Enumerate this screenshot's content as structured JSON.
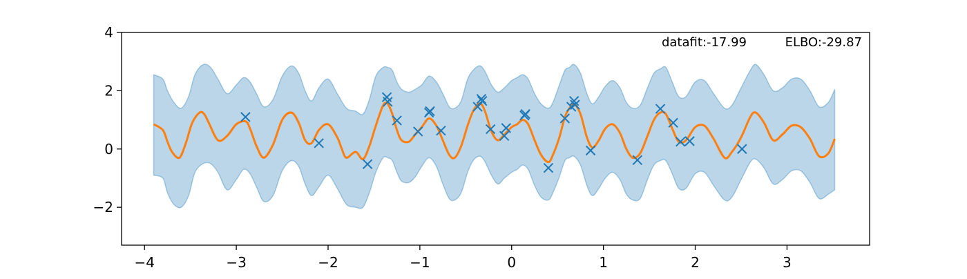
{
  "chart_data": {
    "type": "line",
    "title": "",
    "xlabel": "",
    "ylabel": "",
    "xlim": [
      -4.25,
      3.9
    ],
    "ylim": [
      -3.3,
      4.0
    ],
    "xticks": [
      -4,
      -3,
      -2,
      -1,
      0,
      1,
      2,
      3
    ],
    "yticks": [
      -2,
      0,
      2,
      4
    ],
    "grid": false,
    "colors": {
      "mean": "#ff7f0e",
      "band_fill": "#1f77b4",
      "band_edge": "#1f77b4",
      "points": "#1f77b4"
    },
    "annotations": [
      {
        "label": "datafit:-17.99"
      },
      {
        "label": "ELBO:-29.87"
      }
    ],
    "points": {
      "x": [
        -2.9,
        -2.1,
        -1.57,
        -1.36,
        -1.35,
        -1.25,
        -1.02,
        -0.9,
        -0.89,
        -0.77,
        -0.37,
        -0.33,
        -0.32,
        -0.23,
        -0.08,
        -0.06,
        0.14,
        0.15,
        0.4,
        0.58,
        0.65,
        0.68,
        0.69,
        0.86,
        1.37,
        1.62,
        1.76,
        1.84,
        1.94,
        2.51
      ],
      "y": [
        1.1,
        0.2,
        -0.52,
        1.78,
        1.62,
        0.98,
        0.6,
        1.25,
        1.3,
        0.63,
        1.45,
        1.72,
        1.65,
        0.68,
        0.45,
        0.72,
        1.15,
        1.2,
        -0.65,
        1.05,
        1.45,
        1.65,
        1.52,
        -0.05,
        -0.38,
        1.38,
        0.9,
        0.25,
        0.27,
        0.0
      ]
    },
    "series": [
      {
        "kind": "mean",
        "x": [
          -3.9,
          -3.8,
          -3.75,
          -3.7,
          -3.62,
          -3.55,
          -3.48,
          -3.4,
          -3.35,
          -3.3,
          -3.2,
          -3.1,
          -3.0,
          -2.9,
          -2.85,
          -2.78,
          -2.7,
          -2.6,
          -2.5,
          -2.4,
          -2.32,
          -2.25,
          -2.18,
          -2.1,
          -2.0,
          -1.9,
          -1.85,
          -1.8,
          -1.7,
          -1.62,
          -1.55,
          -1.48,
          -1.4,
          -1.35,
          -1.3,
          -1.25,
          -1.2,
          -1.12,
          -1.05,
          -0.98,
          -0.9,
          -0.82,
          -0.75,
          -0.68,
          -0.62,
          -0.55,
          -0.48,
          -0.42,
          -0.36,
          -0.32,
          -0.28,
          -0.22,
          -0.15,
          -0.08,
          0.0,
          0.06,
          0.12,
          0.18,
          0.25,
          0.32,
          0.4,
          0.45,
          0.52,
          0.58,
          0.63,
          0.68,
          0.75,
          0.82,
          0.88,
          0.95,
          1.02,
          1.1,
          1.18,
          1.25,
          1.32,
          1.4,
          1.48,
          1.55,
          1.62,
          1.68,
          1.75,
          1.82,
          1.9,
          2.0,
          2.1,
          2.2,
          2.32,
          2.4,
          2.5,
          2.6,
          2.66,
          2.75,
          2.85,
          2.95,
          3.05,
          3.15,
          3.25,
          3.35,
          3.45,
          3.52
        ],
        "y": [
          0.85,
          0.65,
          0.25,
          -0.1,
          -0.3,
          0.2,
          0.9,
          1.25,
          1.2,
          0.9,
          0.3,
          0.45,
          0.85,
          0.95,
          0.7,
          0.1,
          -0.3,
          0.15,
          1.0,
          1.25,
          0.9,
          0.3,
          0.2,
          0.65,
          0.85,
          0.4,
          0.0,
          -0.3,
          -0.1,
          -0.35,
          0.1,
          0.8,
          1.5,
          1.55,
          1.2,
          0.65,
          0.3,
          0.25,
          0.5,
          0.75,
          1.05,
          0.8,
          0.3,
          -0.2,
          -0.3,
          0.1,
          0.8,
          1.3,
          1.55,
          1.5,
          1.2,
          0.6,
          0.3,
          0.5,
          0.75,
          0.85,
          1.0,
          0.85,
          0.3,
          -0.2,
          -0.45,
          -0.2,
          0.4,
          1.1,
          1.4,
          1.55,
          1.2,
          0.4,
          0.05,
          0.3,
          0.7,
          0.85,
          0.55,
          0.0,
          -0.3,
          -0.15,
          0.45,
          1.0,
          1.25,
          1.2,
          0.7,
          0.25,
          0.3,
          0.75,
          0.8,
          0.35,
          -0.3,
          -0.1,
          0.4,
          1.1,
          1.25,
          0.9,
          0.3,
          0.5,
          0.8,
          0.75,
          0.35,
          -0.25,
          -0.15,
          0.35
        ]
      },
      {
        "kind": "band_upper",
        "x": [
          -3.9,
          -3.8,
          -3.75,
          -3.68,
          -3.6,
          -3.52,
          -3.45,
          -3.36,
          -3.28,
          -3.2,
          -3.1,
          -3.0,
          -2.92,
          -2.85,
          -2.78,
          -2.7,
          -2.6,
          -2.5,
          -2.4,
          -2.32,
          -2.25,
          -2.18,
          -2.1,
          -2.0,
          -1.9,
          -1.8,
          -1.7,
          -1.62,
          -1.55,
          -1.48,
          -1.4,
          -1.35,
          -1.3,
          -1.25,
          -1.2,
          -1.12,
          -1.05,
          -0.98,
          -0.9,
          -0.82,
          -0.75,
          -0.68,
          -0.62,
          -0.55,
          -0.48,
          -0.42,
          -0.36,
          -0.32,
          -0.28,
          -0.22,
          -0.15,
          -0.08,
          0.0,
          0.06,
          0.12,
          0.18,
          0.25,
          0.32,
          0.4,
          0.45,
          0.52,
          0.58,
          0.63,
          0.68,
          0.75,
          0.82,
          0.88,
          0.95,
          1.02,
          1.1,
          1.18,
          1.25,
          1.32,
          1.4,
          1.48,
          1.55,
          1.62,
          1.68,
          1.75,
          1.82,
          1.9,
          2.0,
          2.1,
          2.2,
          2.32,
          2.4,
          2.5,
          2.6,
          2.66,
          2.75,
          2.85,
          2.95,
          3.05,
          3.15,
          3.25,
          3.35,
          3.45,
          3.52
        ],
        "y": [
          2.55,
          2.4,
          2.0,
          1.6,
          1.4,
          1.8,
          2.55,
          2.9,
          2.8,
          2.4,
          1.9,
          2.2,
          2.45,
          2.3,
          1.9,
          1.45,
          1.7,
          2.5,
          2.85,
          2.6,
          2.0,
          1.65,
          2.1,
          2.4,
          1.9,
          1.4,
          1.3,
          1.2,
          1.7,
          2.5,
          2.8,
          2.8,
          2.7,
          2.3,
          2.05,
          1.95,
          2.05,
          2.2,
          2.5,
          2.3,
          1.9,
          1.45,
          1.4,
          1.65,
          2.4,
          2.7,
          2.85,
          2.8,
          2.6,
          2.2,
          1.95,
          2.1,
          2.35,
          2.45,
          2.55,
          2.4,
          1.9,
          1.55,
          1.4,
          1.6,
          2.2,
          2.7,
          2.8,
          2.9,
          2.6,
          1.9,
          1.55,
          1.8,
          2.15,
          2.35,
          2.1,
          1.6,
          1.4,
          1.5,
          2.1,
          2.6,
          2.75,
          2.8,
          2.3,
          1.8,
          1.8,
          2.3,
          2.35,
          1.9,
          1.4,
          1.5,
          2.1,
          2.7,
          2.9,
          2.55,
          2.0,
          2.1,
          2.4,
          2.4,
          2.0,
          1.45,
          1.6,
          2.05
        ]
      },
      {
        "kind": "band_lower",
        "x": [
          -3.9,
          -3.8,
          -3.75,
          -3.68,
          -3.6,
          -3.52,
          -3.45,
          -3.36,
          -3.28,
          -3.2,
          -3.1,
          -3.0,
          -2.92,
          -2.85,
          -2.78,
          -2.7,
          -2.6,
          -2.5,
          -2.4,
          -2.32,
          -2.25,
          -2.18,
          -2.1,
          -2.0,
          -1.9,
          -1.8,
          -1.7,
          -1.62,
          -1.55,
          -1.48,
          -1.4,
          -1.35,
          -1.3,
          -1.25,
          -1.2,
          -1.12,
          -1.05,
          -0.98,
          -0.9,
          -0.82,
          -0.75,
          -0.68,
          -0.62,
          -0.55,
          -0.48,
          -0.42,
          -0.36,
          -0.32,
          -0.28,
          -0.22,
          -0.15,
          -0.08,
          0.0,
          0.06,
          0.12,
          0.18,
          0.25,
          0.32,
          0.4,
          0.45,
          0.52,
          0.58,
          0.63,
          0.68,
          0.75,
          0.82,
          0.88,
          0.95,
          1.02,
          1.1,
          1.18,
          1.25,
          1.32,
          1.4,
          1.48,
          1.55,
          1.62,
          1.68,
          1.75,
          1.82,
          1.9,
          2.0,
          2.1,
          2.2,
          2.32,
          2.4,
          2.5,
          2.6,
          2.66,
          2.75,
          2.85,
          2.95,
          3.05,
          3.15,
          3.25,
          3.35,
          3.45,
          3.52
        ],
        "y": [
          -0.9,
          -1.0,
          -1.5,
          -1.9,
          -2.0,
          -1.6,
          -0.8,
          -0.5,
          -0.5,
          -0.8,
          -1.4,
          -1.05,
          -0.7,
          -0.85,
          -1.3,
          -1.8,
          -1.6,
          -0.75,
          -0.4,
          -0.6,
          -1.2,
          -1.6,
          -1.3,
          -0.9,
          -1.35,
          -1.9,
          -2.0,
          -2.0,
          -1.5,
          -0.8,
          -0.3,
          -0.3,
          -0.4,
          -0.8,
          -1.1,
          -1.15,
          -0.95,
          -0.6,
          -0.3,
          -0.6,
          -1.2,
          -1.7,
          -1.75,
          -1.5,
          -0.8,
          -0.4,
          -0.25,
          -0.3,
          -0.5,
          -0.9,
          -1.2,
          -1.0,
          -0.8,
          -0.7,
          -0.55,
          -0.7,
          -1.25,
          -1.65,
          -1.75,
          -1.5,
          -0.95,
          -0.4,
          -0.3,
          -0.25,
          -0.55,
          -1.25,
          -1.6,
          -1.35,
          -1.0,
          -0.8,
          -1.05,
          -1.55,
          -1.75,
          -1.7,
          -1.05,
          -0.55,
          -0.4,
          -0.4,
          -0.85,
          -1.35,
          -1.35,
          -0.85,
          -0.8,
          -1.25,
          -1.75,
          -1.65,
          -1.05,
          -0.45,
          -0.35,
          -0.65,
          -1.2,
          -1.05,
          -0.75,
          -0.75,
          -1.15,
          -1.7,
          -1.55,
          -1.4
        ]
      }
    ]
  }
}
